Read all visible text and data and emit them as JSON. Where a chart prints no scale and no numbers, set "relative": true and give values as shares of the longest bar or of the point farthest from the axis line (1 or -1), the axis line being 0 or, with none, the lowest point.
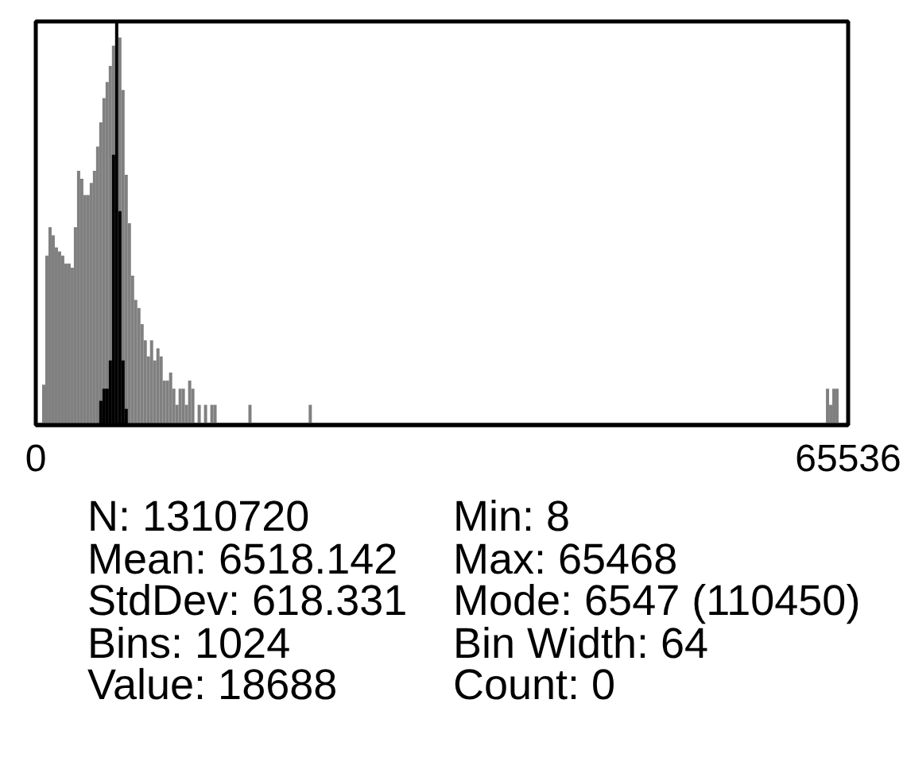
{
  "chart_data": {
    "type": "bar",
    "series": [
      {
        "color": "#808080",
        "x": [
          640,
          896,
          1152,
          1408,
          1664,
          1920,
          2176,
          2432,
          2688,
          2944,
          3200,
          3456,
          3712,
          3968,
          4224,
          4480,
          4736,
          4992,
          5248,
          5504,
          5760,
          6016,
          6272,
          6528,
          6784,
          7040,
          7296,
          7552,
          7808,
          8064,
          8320,
          8576,
          8832,
          9088,
          9344,
          9600,
          9856,
          10112,
          10368,
          10624,
          10880,
          11136,
          11392,
          11648,
          11904,
          12160,
          12416,
          12672,
          13184,
          13696,
          14208,
          14464,
          17280,
          22144,
          63872,
          64128,
          64384,
          64640
        ],
        "values": [
          0.1,
          0.42,
          0.49,
          0.47,
          0.44,
          0.43,
          0.42,
          0.4,
          0.4,
          0.39,
          0.49,
          0.63,
          0.61,
          0.57,
          0.57,
          0.6,
          0.63,
          0.69,
          0.75,
          0.81,
          0.85,
          0.89,
          0.94,
          null,
          0.96,
          0.83,
          0.62,
          0.5,
          0.37,
          0.31,
          0.29,
          0.25,
          0.21,
          0.17,
          0.21,
          0.16,
          0.19,
          0.17,
          0.11,
          0.11,
          0.13,
          0.09,
          0.05,
          0.09,
          0.09,
          0.05,
          0.11,
          0.09,
          0.05,
          0.05,
          0.05,
          0.05,
          0.05,
          0.05,
          0.09,
          0.05,
          0.09,
          0.09
        ]
      },
      {
        "color": "#000000",
        "x": [
          5248,
          5504,
          5760,
          6016,
          6272,
          6528,
          6784,
          7040,
          7296
        ],
        "values": [
          0.06,
          0.09,
          0.09,
          0.16,
          0.67,
          1,
          0.53,
          0.16,
          0.04
        ]
      }
    ],
    "relative": true,
    "xlim": [
      0,
      65536
    ],
    "xticks": [
      0,
      65536
    ],
    "annotations": [
      "N: 1310720",
      "Mean: 6518.142",
      "StdDev: 618.331",
      "Bins: 1024",
      "Value: 18688",
      "Min: 8",
      "Max: 65468",
      "Mode: 6547 (110450)",
      "Bin Width: 64",
      "Count: 0"
    ]
  }
}
